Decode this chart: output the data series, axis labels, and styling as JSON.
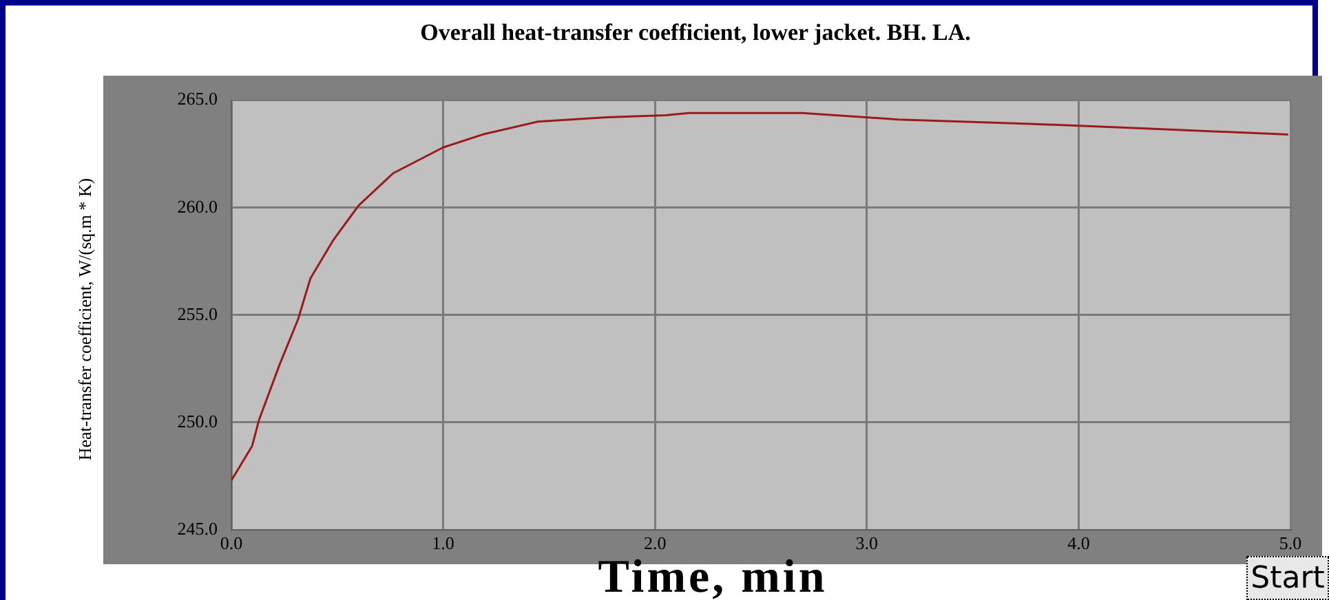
{
  "chart_data": {
    "type": "line",
    "title": "Overall heat-transfer coefficient, lower jacket. BH. LA.",
    "xlabel": "Time, min",
    "ylabel": "Heat-transfer coefficient, W/(sq.m * K)",
    "x": [
      0,
      0.098,
      0.13,
      0.228,
      0.315,
      0.373,
      0.482,
      0.601,
      0.764,
      1.0,
      1.185,
      1.447,
      1.77,
      2.05,
      2.16,
      2.695,
      3.15,
      3.77,
      4.28,
      4.99
    ],
    "series": [
      {
        "color": "#9b1a1a",
        "values": [
          247.3,
          248.9,
          250.1,
          252.7,
          254.8,
          256.7,
          258.5,
          260.1,
          261.6,
          262.8,
          263.4,
          264.0,
          264.2,
          264.3,
          264.4,
          264.4,
          264.1,
          263.9,
          263.7,
          263.4
        ]
      }
    ],
    "xlim": [
      0,
      5
    ],
    "ylim": [
      245,
      265
    ],
    "xticks": [
      {
        "value": 0,
        "label": "0.0"
      },
      {
        "value": 1,
        "label": "1.0"
      },
      {
        "value": 2,
        "label": "2.0"
      },
      {
        "value": 3,
        "label": "3.0"
      },
      {
        "value": 4,
        "label": "4.0"
      },
      {
        "value": 5,
        "label": "5.0"
      }
    ],
    "yticks": [
      {
        "value": 245,
        "label": "245.0"
      },
      {
        "value": 250,
        "label": "250.0"
      },
      {
        "value": 255,
        "label": "255.0"
      },
      {
        "value": 260,
        "label": "260.0"
      },
      {
        "value": 265,
        "label": "265.0"
      }
    ],
    "grid": true,
    "legend": false,
    "marker": "none",
    "line_style": "solid",
    "annotations": [
      "Start"
    ]
  }
}
